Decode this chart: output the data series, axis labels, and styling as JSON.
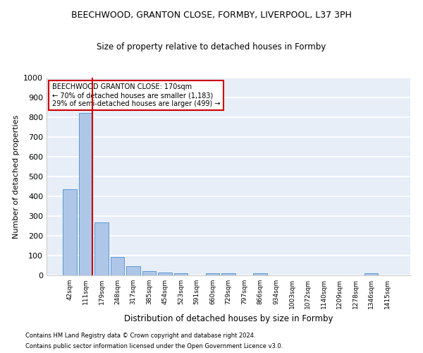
{
  "title1": "BEECHWOOD, GRANTON CLOSE, FORMBY, LIVERPOOL, L37 3PH",
  "title2": "Size of property relative to detached houses in Formby",
  "xlabel": "Distribution of detached houses by size in Formby",
  "ylabel": "Number of detached properties",
  "footnote1": "Contains HM Land Registry data © Crown copyright and database right 2024.",
  "footnote2": "Contains public sector information licensed under the Open Government Licence v3.0.",
  "bar_labels": [
    "42sqm",
    "111sqm",
    "179sqm",
    "248sqm",
    "317sqm",
    "385sqm",
    "454sqm",
    "523sqm",
    "591sqm",
    "660sqm",
    "729sqm",
    "797sqm",
    "866sqm",
    "934sqm",
    "1003sqm",
    "1072sqm",
    "1140sqm",
    "1209sqm",
    "1278sqm",
    "1346sqm",
    "1415sqm"
  ],
  "bar_values": [
    435,
    820,
    268,
    92,
    47,
    22,
    16,
    10,
    0,
    10,
    10,
    0,
    10,
    0,
    0,
    0,
    0,
    0,
    0,
    10,
    0
  ],
  "bar_color": "#aec6e8",
  "bar_edge_color": "#5b9bd5",
  "vline_bar_index": 1,
  "annotation_title": "BEECHWOOD GRANTON CLOSE: 170sqm",
  "annotation_line1": "← 70% of detached houses are smaller (1,183)",
  "annotation_line2": "29% of semi-detached houses are larger (499) →",
  "vline_color": "#cc0000",
  "annotation_box_color": "#cc0000",
  "ylim": [
    0,
    1000
  ],
  "yticks": [
    0,
    100,
    200,
    300,
    400,
    500,
    600,
    700,
    800,
    900,
    1000
  ],
  "bg_color": "#e8eef8",
  "grid_color": "#ffffff",
  "title_fontsize": 9,
  "subtitle_fontsize": 8.5
}
